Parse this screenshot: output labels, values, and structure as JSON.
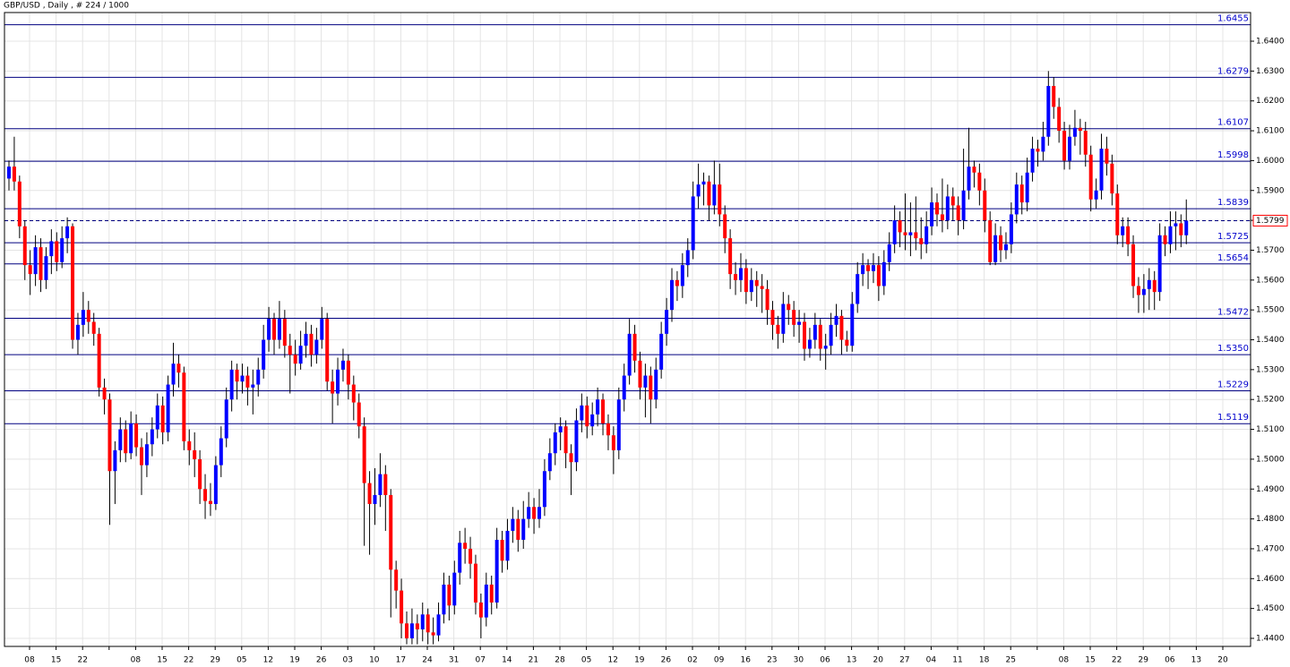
{
  "chart_data": {
    "type": "candlestick",
    "title": "GBP/USD , Daily , # 224 / 1000",
    "bull_color": "#0000ff",
    "bear_color": "#ff0000",
    "level_color": "#000080",
    "grid": true,
    "ylim": [
      1.4373,
      1.6496
    ],
    "yticks": [
      {
        "value": 1.44,
        "label": "1.4400"
      },
      {
        "value": 1.45,
        "label": "1.4500"
      },
      {
        "value": 1.46,
        "label": "1.4600"
      },
      {
        "value": 1.47,
        "label": "1.4700"
      },
      {
        "value": 1.48,
        "label": "1.4800"
      },
      {
        "value": 1.49,
        "label": "1.4900"
      },
      {
        "value": 1.5,
        "label": "1.5000"
      },
      {
        "value": 1.51,
        "label": "1.5100"
      },
      {
        "value": 1.52,
        "label": "1.5200"
      },
      {
        "value": 1.53,
        "label": "1.5300"
      },
      {
        "value": 1.54,
        "label": "1.5400"
      },
      {
        "value": 1.55,
        "label": "1.5500"
      },
      {
        "value": 1.56,
        "label": "1.5600"
      },
      {
        "value": 1.57,
        "label": "1.5700"
      },
      {
        "value": 1.58,
        "label": "1.5800"
      },
      {
        "value": 1.59,
        "label": "1.5900"
      },
      {
        "value": 1.6,
        "label": "1.6000"
      },
      {
        "value": 1.61,
        "label": "1.6100"
      },
      {
        "value": 1.62,
        "label": "1.6200"
      },
      {
        "value": 1.63,
        "label": "1.6300"
      },
      {
        "value": 1.64,
        "label": "1.6400"
      }
    ],
    "x_labels": [
      "08",
      "15",
      "22",
      null,
      "08",
      "15",
      "22",
      "29",
      "05",
      "12",
      "19",
      "26",
      "03",
      "10",
      "17",
      "24",
      "31",
      "07",
      "14",
      "21",
      "28",
      "05",
      "12",
      "19",
      "26",
      "02",
      "09",
      "16",
      "23",
      "30",
      "06",
      "13",
      "20",
      "27",
      "04",
      "11",
      "18",
      "25",
      null,
      "08",
      "15",
      "22",
      "29",
      "06",
      "13",
      "20"
    ],
    "levels": [
      1.6455,
      1.6279,
      1.6107,
      1.5998,
      1.5839,
      1.5725,
      1.5654,
      1.5472,
      {
        "value": 1.535,
        "label": "1.5350"
      },
      1.5229,
      1.5119
    ],
    "last_price": 1.5799,
    "candles": [
      [
        1.594,
        1.6,
        1.59,
        1.598
      ],
      [
        1.598,
        1.608,
        1.59,
        1.593
      ],
      [
        1.593,
        1.595,
        1.574,
        1.578
      ],
      [
        1.578,
        1.58,
        1.56,
        1.565
      ],
      [
        1.565,
        1.57,
        1.555,
        1.562
      ],
      [
        1.562,
        1.575,
        1.558,
        1.571
      ],
      [
        1.571,
        1.574,
        1.556,
        1.56
      ],
      [
        1.56,
        1.571,
        1.557,
        1.568
      ],
      [
        1.568,
        1.577,
        1.562,
        1.573
      ],
      [
        1.573,
        1.576,
        1.563,
        1.566
      ],
      [
        1.566,
        1.578,
        1.564,
        1.574
      ],
      [
        1.574,
        1.581,
        1.569,
        1.578
      ],
      [
        1.578,
        1.579,
        1.537,
        1.54
      ],
      [
        1.54,
        1.549,
        1.535,
        1.545
      ],
      [
        1.545,
        1.556,
        1.541,
        1.55
      ],
      [
        1.55,
        1.553,
        1.542,
        1.546
      ],
      [
        1.546,
        1.549,
        1.538,
        1.542
      ],
      [
        1.542,
        1.544,
        1.521,
        1.524
      ],
      [
        1.524,
        1.527,
        1.515,
        1.52
      ],
      [
        1.52,
        1.522,
        1.478,
        1.496
      ],
      [
        1.496,
        1.506,
        1.485,
        1.503
      ],
      [
        1.503,
        1.514,
        1.499,
        1.51
      ],
      [
        1.51,
        1.513,
        1.499,
        1.502
      ],
      [
        1.502,
        1.516,
        1.5,
        1.512
      ],
      [
        1.512,
        1.515,
        1.501,
        1.504
      ],
      [
        1.504,
        1.507,
        1.488,
        1.498
      ],
      [
        1.498,
        1.509,
        1.494,
        1.505
      ],
      [
        1.505,
        1.514,
        1.501,
        1.51
      ],
      [
        1.51,
        1.522,
        1.507,
        1.518
      ],
      [
        1.518,
        1.521,
        1.505,
        1.509
      ],
      [
        1.509,
        1.528,
        1.506,
        1.525
      ],
      [
        1.525,
        1.539,
        1.521,
        1.532
      ],
      [
        1.532,
        1.535,
        1.524,
        1.529
      ],
      [
        1.529,
        1.531,
        1.503,
        1.506
      ],
      [
        1.506,
        1.51,
        1.498,
        1.503
      ],
      [
        1.503,
        1.509,
        1.494,
        1.5
      ],
      [
        1.5,
        1.503,
        1.485,
        1.49
      ],
      [
        1.49,
        1.495,
        1.48,
        1.486
      ],
      [
        1.486,
        1.492,
        1.481,
        1.485
      ],
      [
        1.485,
        1.501,
        1.483,
        1.498
      ],
      [
        1.498,
        1.511,
        1.494,
        1.507
      ],
      [
        1.507,
        1.524,
        1.504,
        1.52
      ],
      [
        1.52,
        1.533,
        1.516,
        1.53
      ],
      [
        1.53,
        1.532,
        1.52,
        1.526
      ],
      [
        1.526,
        1.532,
        1.522,
        1.528
      ],
      [
        1.528,
        1.531,
        1.518,
        1.524
      ],
      [
        1.524,
        1.53,
        1.515,
        1.525
      ],
      [
        1.525,
        1.534,
        1.521,
        1.53
      ],
      [
        1.53,
        1.545,
        1.527,
        1.54
      ],
      [
        1.54,
        1.551,
        1.536,
        1.547
      ],
      [
        1.547,
        1.549,
        1.535,
        1.54
      ],
      [
        1.54,
        1.553,
        1.537,
        1.547
      ],
      [
        1.547,
        1.55,
        1.534,
        1.538
      ],
      [
        1.538,
        1.542,
        1.522,
        1.535
      ],
      [
        1.535,
        1.54,
        1.528,
        1.532
      ],
      [
        1.532,
        1.543,
        1.53,
        1.538
      ],
      [
        1.538,
        1.546,
        1.534,
        1.542
      ],
      [
        1.542,
        1.545,
        1.531,
        1.535
      ],
      [
        1.535,
        1.544,
        1.532,
        1.54
      ],
      [
        1.54,
        1.551,
        1.537,
        1.547
      ],
      [
        1.547,
        1.549,
        1.523,
        1.526
      ],
      [
        1.526,
        1.53,
        1.512,
        1.522
      ],
      [
        1.522,
        1.534,
        1.518,
        1.53
      ],
      [
        1.53,
        1.537,
        1.526,
        1.533
      ],
      [
        1.533,
        1.535,
        1.52,
        1.525
      ],
      [
        1.525,
        1.528,
        1.513,
        1.519
      ],
      [
        1.519,
        1.522,
        1.507,
        1.511
      ],
      [
        1.511,
        1.514,
        1.471,
        1.492
      ],
      [
        1.492,
        1.496,
        1.468,
        1.485
      ],
      [
        1.485,
        1.497,
        1.478,
        1.488
      ],
      [
        1.488,
        1.502,
        1.484,
        1.495
      ],
      [
        1.495,
        1.498,
        1.476,
        1.488
      ],
      [
        1.488,
        1.49,
        1.447,
        1.463
      ],
      [
        1.463,
        1.466,
        1.45,
        1.456
      ],
      [
        1.456,
        1.46,
        1.44,
        1.445
      ],
      [
        1.445,
        1.449,
        1.438,
        1.44
      ],
      [
        1.44,
        1.45,
        1.438,
        1.445
      ],
      [
        1.445,
        1.448,
        1.438,
        1.443
      ],
      [
        1.443,
        1.452,
        1.439,
        1.448
      ],
      [
        1.448,
        1.45,
        1.438,
        1.442
      ],
      [
        1.442,
        1.447,
        1.438,
        1.441
      ],
      [
        1.441,
        1.452,
        1.439,
        1.448
      ],
      [
        1.448,
        1.462,
        1.445,
        1.458
      ],
      [
        1.458,
        1.461,
        1.446,
        1.451
      ],
      [
        1.451,
        1.466,
        1.448,
        1.462
      ],
      [
        1.462,
        1.476,
        1.458,
        1.472
      ],
      [
        1.472,
        1.477,
        1.465,
        1.47
      ],
      [
        1.47,
        1.474,
        1.46,
        1.465
      ],
      [
        1.465,
        1.468,
        1.448,
        1.452
      ],
      [
        1.452,
        1.455,
        1.44,
        1.447
      ],
      [
        1.447,
        1.462,
        1.444,
        1.458
      ],
      [
        1.458,
        1.461,
        1.448,
        1.452
      ],
      [
        1.452,
        1.477,
        1.45,
        1.473
      ],
      [
        1.473,
        1.476,
        1.462,
        1.466
      ],
      [
        1.466,
        1.48,
        1.463,
        1.476
      ],
      [
        1.476,
        1.484,
        1.472,
        1.48
      ],
      [
        1.48,
        1.483,
        1.469,
        1.473
      ],
      [
        1.473,
        1.486,
        1.47,
        1.48
      ],
      [
        1.48,
        1.489,
        1.477,
        1.484
      ],
      [
        1.484,
        1.487,
        1.475,
        1.48
      ],
      [
        1.48,
        1.49,
        1.477,
        1.484
      ],
      [
        1.484,
        1.5,
        1.481,
        1.496
      ],
      [
        1.496,
        1.507,
        1.493,
        1.502
      ],
      [
        1.502,
        1.512,
        1.498,
        1.509
      ],
      [
        1.509,
        1.514,
        1.503,
        1.511
      ],
      [
        1.511,
        1.513,
        1.497,
        1.502
      ],
      [
        1.502,
        1.505,
        1.488,
        1.499
      ],
      [
        1.499,
        1.517,
        1.496,
        1.513
      ],
      [
        1.513,
        1.522,
        1.509,
        1.518
      ],
      [
        1.518,
        1.521,
        1.507,
        1.511
      ],
      [
        1.511,
        1.519,
        1.508,
        1.515
      ],
      [
        1.515,
        1.524,
        1.511,
        1.52
      ],
      [
        1.52,
        1.522,
        1.508,
        1.512
      ],
      [
        1.512,
        1.515,
        1.503,
        1.508
      ],
      [
        1.508,
        1.511,
        1.495,
        1.503
      ],
      [
        1.503,
        1.524,
        1.5,
        1.52
      ],
      [
        1.52,
        1.532,
        1.516,
        1.528
      ],
      [
        1.528,
        1.547,
        1.525,
        1.542
      ],
      [
        1.542,
        1.545,
        1.529,
        1.533
      ],
      [
        1.533,
        1.536,
        1.52,
        1.524
      ],
      [
        1.524,
        1.532,
        1.514,
        1.528
      ],
      [
        1.528,
        1.531,
        1.512,
        1.52
      ],
      [
        1.52,
        1.534,
        1.517,
        1.53
      ],
      [
        1.53,
        1.546,
        1.527,
        1.542
      ],
      [
        1.542,
        1.554,
        1.538,
        1.55
      ],
      [
        1.55,
        1.564,
        1.546,
        1.56
      ],
      [
        1.56,
        1.563,
        1.553,
        1.558
      ],
      [
        1.558,
        1.569,
        1.554,
        1.565
      ],
      [
        1.565,
        1.574,
        1.561,
        1.57
      ],
      [
        1.57,
        1.593,
        1.567,
        1.588
      ],
      [
        1.588,
        1.599,
        1.584,
        1.592
      ],
      [
        1.592,
        1.596,
        1.585,
        1.593
      ],
      [
        1.593,
        1.595,
        1.58,
        1.585
      ],
      [
        1.585,
        1.6,
        1.582,
        1.592
      ],
      [
        1.592,
        1.599,
        1.578,
        1.582
      ],
      [
        1.582,
        1.585,
        1.569,
        1.574
      ],
      [
        1.574,
        1.577,
        1.557,
        1.562
      ],
      [
        1.562,
        1.566,
        1.555,
        1.56
      ],
      [
        1.56,
        1.569,
        1.556,
        1.564
      ],
      [
        1.564,
        1.567,
        1.552,
        1.556
      ],
      [
        1.556,
        1.564,
        1.553,
        1.56
      ],
      [
        1.56,
        1.563,
        1.551,
        1.558
      ],
      [
        1.558,
        1.562,
        1.549,
        1.557
      ],
      [
        1.557,
        1.56,
        1.545,
        1.55
      ],
      [
        1.55,
        1.553,
        1.54,
        1.545
      ],
      [
        1.545,
        1.548,
        1.537,
        1.542
      ],
      [
        1.542,
        1.556,
        1.539,
        1.552
      ],
      [
        1.552,
        1.555,
        1.545,
        1.55
      ],
      [
        1.55,
        1.553,
        1.541,
        1.545
      ],
      [
        1.545,
        1.55,
        1.539,
        1.546
      ],
      [
        1.546,
        1.549,
        1.533,
        1.537
      ],
      [
        1.537,
        1.544,
        1.534,
        1.54
      ],
      [
        1.54,
        1.549,
        1.537,
        1.545
      ],
      [
        1.545,
        1.547,
        1.533,
        1.537
      ],
      [
        1.537,
        1.542,
        1.53,
        1.538
      ],
      [
        1.538,
        1.549,
        1.535,
        1.545
      ],
      [
        1.545,
        1.552,
        1.541,
        1.548
      ],
      [
        1.548,
        1.55,
        1.535,
        1.54
      ],
      [
        1.54,
        1.543,
        1.536,
        1.538
      ],
      [
        1.538,
        1.556,
        1.536,
        1.552
      ],
      [
        1.552,
        1.566,
        1.549,
        1.562
      ],
      [
        1.562,
        1.569,
        1.558,
        1.565
      ],
      [
        1.565,
        1.567,
        1.557,
        1.563
      ],
      [
        1.563,
        1.569,
        1.559,
        1.565
      ],
      [
        1.565,
        1.568,
        1.553,
        1.558
      ],
      [
        1.558,
        1.57,
        1.555,
        1.566
      ],
      [
        1.566,
        1.576,
        1.563,
        1.572
      ],
      [
        1.572,
        1.585,
        1.569,
        1.58
      ],
      [
        1.58,
        1.583,
        1.571,
        1.576
      ],
      [
        1.576,
        1.589,
        1.57,
        1.575
      ],
      [
        1.575,
        1.586,
        1.568,
        1.576
      ],
      [
        1.576,
        1.588,
        1.57,
        1.574
      ],
      [
        1.574,
        1.581,
        1.567,
        1.572
      ],
      [
        1.572,
        1.583,
        1.569,
        1.578
      ],
      [
        1.578,
        1.591,
        1.575,
        1.586
      ],
      [
        1.586,
        1.589,
        1.578,
        1.582
      ],
      [
        1.582,
        1.594,
        1.576,
        1.58
      ],
      [
        1.58,
        1.592,
        1.577,
        1.588
      ],
      [
        1.588,
        1.591,
        1.58,
        1.585
      ],
      [
        1.585,
        1.588,
        1.575,
        1.58
      ],
      [
        1.58,
        1.604,
        1.577,
        1.59
      ],
      [
        1.59,
        1.611,
        1.587,
        1.598
      ],
      [
        1.598,
        1.6,
        1.591,
        1.596
      ],
      [
        1.596,
        1.599,
        1.585,
        1.59
      ],
      [
        1.59,
        1.594,
        1.576,
        1.58
      ],
      [
        1.58,
        1.583,
        1.565,
        1.566
      ],
      [
        1.566,
        1.579,
        1.565,
        1.575
      ],
      [
        1.575,
        1.578,
        1.566,
        1.57
      ],
      [
        1.57,
        1.576,
        1.567,
        1.572
      ],
      [
        1.572,
        1.586,
        1.569,
        1.582
      ],
      [
        1.582,
        1.596,
        1.579,
        1.592
      ],
      [
        1.592,
        1.595,
        1.582,
        1.586
      ],
      [
        1.586,
        1.601,
        1.583,
        1.596
      ],
      [
        1.596,
        1.608,
        1.593,
        1.604
      ],
      [
        1.604,
        1.607,
        1.598,
        1.603
      ],
      [
        1.603,
        1.613,
        1.6,
        1.608
      ],
      [
        1.608,
        1.63,
        1.605,
        1.625
      ],
      [
        1.625,
        1.628,
        1.614,
        1.618
      ],
      [
        1.618,
        1.621,
        1.606,
        1.61
      ],
      [
        1.61,
        1.613,
        1.597,
        1.6
      ],
      [
        1.6,
        1.612,
        1.597,
        1.608
      ],
      [
        1.608,
        1.617,
        1.605,
        1.611
      ],
      [
        1.611,
        1.614,
        1.602,
        1.61
      ],
      [
        1.61,
        1.613,
        1.598,
        1.602
      ],
      [
        1.602,
        1.605,
        1.583,
        1.587
      ],
      [
        1.587,
        1.594,
        1.584,
        1.59
      ],
      [
        1.59,
        1.609,
        1.587,
        1.604
      ],
      [
        1.604,
        1.608,
        1.595,
        1.599
      ],
      [
        1.599,
        1.602,
        1.585,
        1.589
      ],
      [
        1.589,
        1.592,
        1.572,
        1.575
      ],
      [
        1.575,
        1.581,
        1.571,
        1.578
      ],
      [
        1.578,
        1.581,
        1.568,
        1.572
      ],
      [
        1.572,
        1.575,
        1.554,
        1.558
      ],
      [
        1.558,
        1.561,
        1.549,
        1.555
      ],
      [
        1.555,
        1.562,
        1.549,
        1.557
      ],
      [
        1.557,
        1.564,
        1.55,
        1.56
      ],
      [
        1.56,
        1.563,
        1.55,
        1.556
      ],
      [
        1.556,
        1.579,
        1.553,
        1.575
      ],
      [
        1.575,
        1.578,
        1.568,
        1.572
      ],
      [
        1.572,
        1.583,
        1.569,
        1.578
      ],
      [
        1.578,
        1.583,
        1.57,
        1.579
      ],
      [
        1.579,
        1.582,
        1.571,
        1.575
      ],
      [
        1.575,
        1.587,
        1.572,
        1.5799
      ]
    ]
  }
}
